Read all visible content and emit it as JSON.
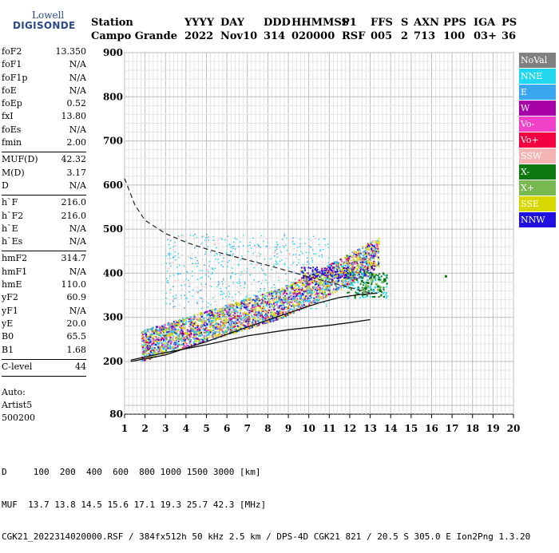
{
  "logo": {
    "line1": "Lowell",
    "line2": "DIGISONDE"
  },
  "header": {
    "columns": [
      {
        "head": "Station",
        "value": "Campo Grande"
      },
      {
        "head": "YYYY",
        "value": "2022"
      },
      {
        "head": "DAY",
        "value": "Nov10"
      },
      {
        "head": "DDD",
        "value": "314"
      },
      {
        "head": "HHMMSS",
        "value": "020000"
      },
      {
        "head": "P1",
        "value": "RSF"
      },
      {
        "head": "FFS",
        "value": "005"
      },
      {
        "head": "S",
        "value": "2"
      },
      {
        "head": "AXN",
        "value": "713"
      },
      {
        "head": "PPS",
        "value": "100"
      },
      {
        "head": "IGA",
        "value": "03+"
      },
      {
        "head": "PS",
        "value": "36"
      }
    ]
  },
  "params": {
    "group1": [
      {
        "k": "foF2",
        "v": "13.350"
      },
      {
        "k": "foF1",
        "v": "N/A"
      },
      {
        "k": "foF1p",
        "v": "N/A"
      },
      {
        "k": "foE",
        "v": "N/A"
      },
      {
        "k": "foEp",
        "v": "0.52"
      },
      {
        "k": "fxI",
        "v": "13.80"
      },
      {
        "k": "foEs",
        "v": "N/A"
      },
      {
        "k": "fmin",
        "v": "2.00"
      }
    ],
    "group2": [
      {
        "k": "MUF(D)",
        "v": "42.32"
      },
      {
        "k": "M(D)",
        "v": "3.17"
      },
      {
        "k": "D",
        "v": "N/A"
      }
    ],
    "group3": [
      {
        "k": "h`F",
        "v": "216.0"
      },
      {
        "k": "h`F2",
        "v": "216.0"
      },
      {
        "k": "h`E",
        "v": "N/A"
      },
      {
        "k": "h`Es",
        "v": "N/A"
      }
    ],
    "group4": [
      {
        "k": "hmF2",
        "v": "314.7"
      },
      {
        "k": "hmF1",
        "v": "N/A"
      },
      {
        "k": "hmE",
        "v": "110.0"
      },
      {
        "k": "yF2",
        "v": "60.9"
      },
      {
        "k": "yF1",
        "v": "N/A"
      },
      {
        "k": "yE",
        "v": "20.0"
      },
      {
        "k": "B0",
        "v": "65.5"
      },
      {
        "k": "B1",
        "v": "1.68"
      }
    ],
    "group5": [
      {
        "k": "C-level",
        "v": "44"
      }
    ]
  },
  "auto": {
    "line1": "Auto:",
    "line2": "Artist5",
    "line3": "500200"
  },
  "legend": [
    {
      "label": "NoVal",
      "color": "#808080"
    },
    {
      "label": "NNE",
      "color": "#22d8f0"
    },
    {
      "label": "E",
      "color": "#3aa8f0"
    },
    {
      "label": "W",
      "color": "#a800a8"
    },
    {
      "label": "Vo-",
      "color": "#f040c8"
    },
    {
      "label": "Vo+",
      "color": "#f00040"
    },
    {
      "label": "SSW",
      "color": "#f4b4b4"
    },
    {
      "label": "X-",
      "color": "#107810"
    },
    {
      "label": "X+",
      "color": "#78b850"
    },
    {
      "label": "SSE",
      "color": "#d8d800"
    },
    {
      "label": "NNW",
      "color": "#2010e0"
    }
  ],
  "footer": {
    "line1": "D     100  200  400  600  800 1000 1500 3000 [km]",
    "line2": "MUF  13.7 13.8 14.5 15.6 17.1 19.3 25.7 42.3 [MHz]",
    "line3": "CGK21_2022314020000.RSF / 384fx512h 50 kHz 2.5 km / DPS-4D CGK21 821 / 20.5 S 305.0 E Ion2Png 1.3.20"
  },
  "chart_data": {
    "type": "scatter",
    "xlim": [
      1,
      20
    ],
    "ylim": [
      80,
      900
    ],
    "xticks": [
      "1",
      "2",
      "3",
      "4",
      "5",
      "6",
      "7",
      "8",
      "9",
      "10",
      "11",
      "12",
      "13",
      "14",
      "15",
      "16",
      "17",
      "18",
      "19",
      "20"
    ],
    "yticks": [
      "80",
      "200",
      "300",
      "400",
      "500",
      "600",
      "700",
      "800",
      "900"
    ],
    "grid": true,
    "series": [
      {
        "name": "X+",
        "color": "#78b850",
        "x": [
          12.9,
          13.1,
          13.3,
          13.5,
          12.7,
          13.0,
          13.6,
          13.2,
          12.8,
          13.4
        ],
        "y": [
          370,
          385,
          375,
          368,
          360,
          395,
          380,
          390,
          372,
          362
        ]
      },
      {
        "name": "X-",
        "color": "#107810",
        "x": [
          12.6,
          12.9,
          13.2,
          13.4,
          13.7,
          12.8,
          13.1,
          13.5,
          16.7
        ],
        "y": [
          382,
          378,
          392,
          370,
          386,
          366,
          398,
          360,
          393
        ]
      }
    ],
    "profile": {
      "f": [
        1.3,
        3,
        5,
        7,
        9,
        10.5,
        11.5,
        12.5,
        13.35
      ],
      "h": [
        200,
        215,
        245,
        278,
        310,
        333,
        345,
        352,
        355
      ]
    },
    "trace_o": {
      "f": [
        1.3,
        3,
        5,
        7,
        9,
        11,
        12,
        13
      ],
      "h": [
        203,
        220,
        238,
        258,
        272,
        282,
        288,
        295
      ]
    },
    "muf_dashed": {
      "f": [
        1.0,
        1.5,
        2,
        3,
        4,
        5,
        6,
        7,
        8,
        9,
        10,
        11,
        12,
        13
      ],
      "h": [
        615,
        555,
        520,
        490,
        470,
        455,
        442,
        430,
        418,
        405,
        392,
        380,
        368,
        355
      ]
    }
  }
}
